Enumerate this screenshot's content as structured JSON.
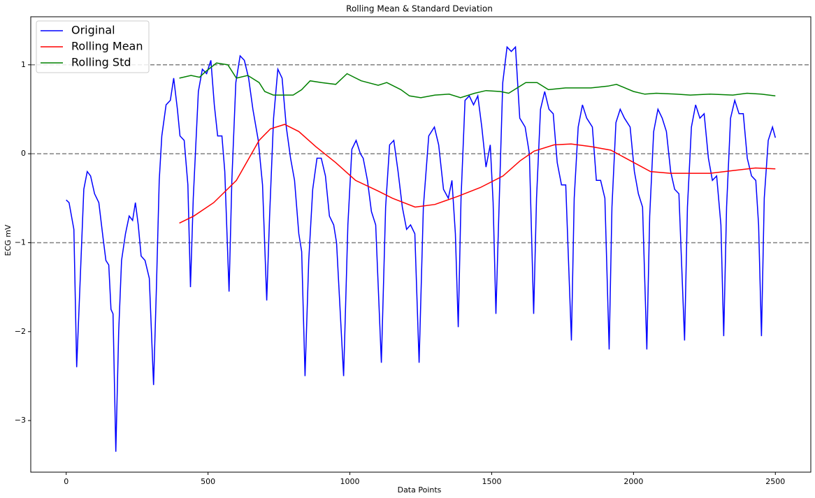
{
  "chart_data": {
    "type": "line",
    "title": "Rolling Mean & Standard Deviation",
    "xlabel": "Data Points",
    "ylabel": "ECG mV",
    "xlim": [
      -125,
      2625
    ],
    "ylim": [
      -3.58,
      1.54
    ],
    "xticks": [
      0,
      500,
      1000,
      1500,
      2000,
      2500
    ],
    "yticks": [
      {
        "value": -3,
        "label": "−3"
      },
      {
        "value": -2,
        "label": "−2"
      },
      {
        "value": -1,
        "label": "−1"
      },
      0,
      1
    ],
    "hlines": [
      -1,
      0,
      1
    ],
    "hline_color": "#808080",
    "legend": "upper left",
    "series": [
      {
        "name": "Original",
        "color": "#0000ff",
        "x": [
          0,
          10,
          27,
          37,
          47,
          62,
          74,
          86,
          100,
          115,
          130,
          140,
          150,
          158,
          165,
          175,
          185,
          195,
          209,
          222,
          234,
          244,
          254,
          264,
          278,
          293,
          308,
          318,
          328,
          337,
          352,
          367,
          379,
          392,
          401,
          416,
          429,
          438,
          448,
          466,
          480,
          495,
          510,
          522,
          534,
          549,
          559,
          574,
          584,
          598,
          613,
          628,
          643,
          658,
          677,
          692,
          707,
          717,
          731,
          746,
          761,
          776,
          791,
          805,
          820,
          830,
          842,
          855,
          869,
          884,
          899,
          914,
          928,
          943,
          953,
          978,
          993,
          1007,
          1022,
          1037,
          1047,
          1062,
          1076,
          1091,
          1111,
          1126,
          1140,
          1155,
          1170,
          1185,
          1200,
          1214,
          1229,
          1244,
          1259,
          1278,
          1298,
          1313,
          1330,
          1347,
          1360,
          1372,
          1382,
          1392,
          1406,
          1421,
          1436,
          1451,
          1465,
          1480,
          1495,
          1505,
          1515,
          1525,
          1539,
          1554,
          1569,
          1584,
          1599,
          1618,
          1633,
          1648,
          1658,
          1672,
          1687,
          1702,
          1717,
          1731,
          1746,
          1761,
          1781,
          1791,
          1805,
          1820,
          1835,
          1855,
          1869,
          1884,
          1899,
          1914,
          1924,
          1938,
          1953,
          1968,
          1988,
          2003,
          2017,
          2032,
          2047,
          2057,
          2071,
          2086,
          2101,
          2116,
          2131,
          2145,
          2160,
          2180,
          2190,
          2204,
          2219,
          2234,
          2249,
          2264,
          2278,
          2293,
          2308,
          2318,
          2328,
          2342,
          2357,
          2372,
          2387,
          2401,
          2416,
          2431,
          2441,
          2451,
          2461,
          2475,
          2490,
          2500
        ],
        "values": [
          -0.52,
          -0.55,
          -0.85,
          -2.4,
          -1.6,
          -0.4,
          -0.2,
          -0.25,
          -0.45,
          -0.55,
          -0.95,
          -1.2,
          -1.25,
          -1.75,
          -1.8,
          -3.35,
          -2.0,
          -1.2,
          -0.9,
          -0.7,
          -0.75,
          -0.55,
          -0.8,
          -1.15,
          -1.2,
          -1.4,
          -2.6,
          -1.5,
          -0.3,
          0.2,
          0.55,
          0.6,
          0.85,
          0.5,
          0.2,
          0.15,
          -0.35,
          -1.5,
          -0.5,
          0.7,
          0.95,
          0.9,
          1.05,
          0.55,
          0.2,
          0.2,
          -0.2,
          -1.55,
          -0.3,
          0.8,
          1.1,
          1.05,
          0.85,
          0.5,
          0.15,
          -0.35,
          -1.65,
          -0.7,
          0.4,
          0.95,
          0.85,
          0.3,
          -0.05,
          -0.3,
          -0.9,
          -1.1,
          -2.5,
          -1.2,
          -0.4,
          -0.05,
          -0.05,
          -0.25,
          -0.7,
          -0.8,
          -1.0,
          -2.5,
          -0.8,
          0.05,
          0.15,
          0.0,
          -0.05,
          -0.3,
          -0.65,
          -0.8,
          -2.35,
          -0.6,
          0.1,
          0.15,
          -0.2,
          -0.6,
          -0.85,
          -0.8,
          -0.9,
          -2.35,
          -0.6,
          0.2,
          0.3,
          0.1,
          -0.4,
          -0.5,
          -0.3,
          -0.9,
          -1.95,
          -0.5,
          0.6,
          0.65,
          0.55,
          0.65,
          0.3,
          -0.15,
          0.1,
          -0.55,
          -1.8,
          -0.7,
          0.8,
          1.2,
          1.15,
          1.2,
          0.4,
          0.3,
          0.0,
          -1.8,
          -0.5,
          0.5,
          0.7,
          0.5,
          0.45,
          -0.1,
          -0.35,
          -0.35,
          -2.1,
          -0.5,
          0.3,
          0.55,
          0.4,
          0.3,
          -0.3,
          -0.3,
          -0.5,
          -2.2,
          -0.6,
          0.35,
          0.5,
          0.4,
          0.3,
          -0.2,
          -0.45,
          -0.6,
          -2.2,
          -0.7,
          0.25,
          0.5,
          0.4,
          0.25,
          -0.2,
          -0.4,
          -0.45,
          -2.1,
          -0.6,
          0.3,
          0.55,
          0.4,
          0.45,
          -0.05,
          -0.3,
          -0.25,
          -0.8,
          -2.05,
          -0.6,
          0.4,
          0.6,
          0.45,
          0.45,
          -0.05,
          -0.25,
          -0.3,
          -0.8,
          -2.05,
          -0.5,
          0.15,
          0.3,
          0.18
        ]
      },
      {
        "name": "Rolling Mean",
        "color": "#ff0000",
        "x": [
          399,
          450,
          520,
          600,
          680,
          720,
          770,
          820,
          880,
          950,
          1020,
          1100,
          1150,
          1230,
          1300,
          1380,
          1460,
          1540,
          1600,
          1650,
          1720,
          1780,
          1850,
          1920,
          1990,
          2060,
          2130,
          2200,
          2270,
          2350,
          2430,
          2500
        ],
        "values": [
          -0.78,
          -0.7,
          -0.55,
          -0.3,
          0.15,
          0.28,
          0.33,
          0.25,
          0.08,
          -0.1,
          -0.3,
          -0.42,
          -0.5,
          -0.6,
          -0.57,
          -0.48,
          -0.38,
          -0.25,
          -0.08,
          0.03,
          0.1,
          0.11,
          0.08,
          0.04,
          -0.08,
          -0.2,
          -0.22,
          -0.22,
          -0.22,
          -0.19,
          -0.16,
          -0.17
        ]
      },
      {
        "name": "Rolling Std",
        "color": "#008000",
        "x": [
          399,
          440,
          470,
          490,
          530,
          570,
          600,
          640,
          680,
          700,
          730,
          800,
          830,
          860,
          900,
          950,
          990,
          1040,
          1100,
          1130,
          1180,
          1210,
          1250,
          1300,
          1350,
          1390,
          1440,
          1480,
          1530,
          1560,
          1620,
          1660,
          1700,
          1760,
          1850,
          1910,
          1940,
          2000,
          2040,
          2080,
          2150,
          2200,
          2270,
          2350,
          2400,
          2450,
          2500
        ],
        "values": [
          0.85,
          0.88,
          0.86,
          0.92,
          1.02,
          1.0,
          0.85,
          0.88,
          0.8,
          0.7,
          0.66,
          0.66,
          0.72,
          0.82,
          0.8,
          0.78,
          0.9,
          0.82,
          0.77,
          0.8,
          0.72,
          0.65,
          0.63,
          0.66,
          0.67,
          0.63,
          0.68,
          0.71,
          0.7,
          0.68,
          0.8,
          0.8,
          0.72,
          0.74,
          0.74,
          0.76,
          0.78,
          0.7,
          0.67,
          0.68,
          0.67,
          0.66,
          0.67,
          0.66,
          0.68,
          0.67,
          0.65
        ]
      }
    ]
  }
}
